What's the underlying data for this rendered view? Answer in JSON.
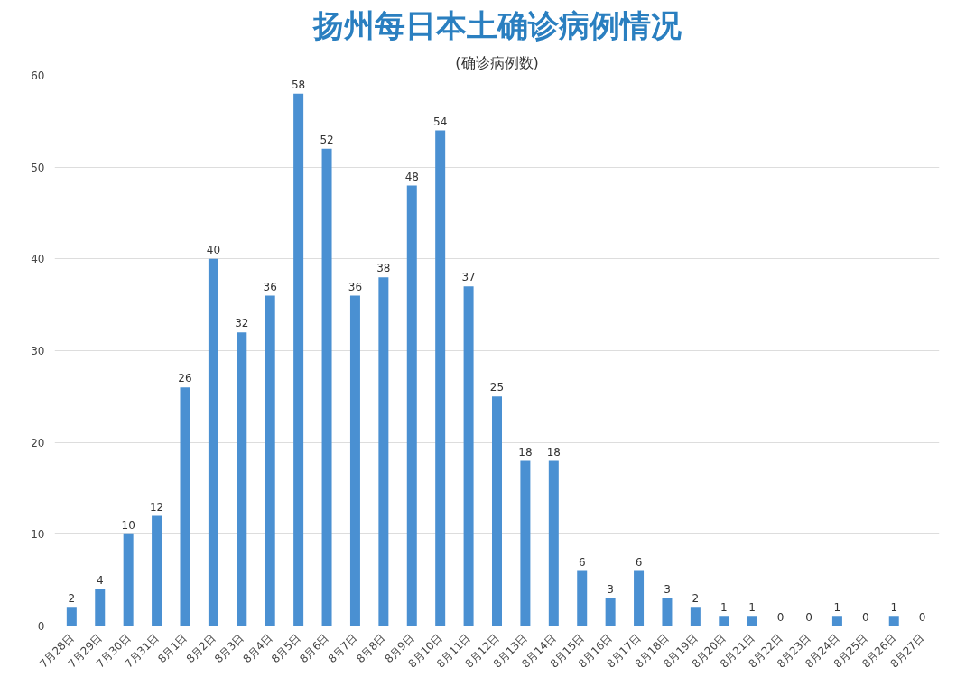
{
  "chart_data": {
    "type": "bar",
    "title": "扬州每日本土确诊病例情况",
    "subtitle": "(确诊病例数)",
    "categories": [
      "7月28日",
      "7月29日",
      "7月30日",
      "7月31日",
      "8月1日",
      "8月2日",
      "8月3日",
      "8月4日",
      "8月5日",
      "8月6日",
      "8月7日",
      "8月8日",
      "8月9日",
      "8月10日",
      "8月11日",
      "8月12日",
      "8月13日",
      "8月14日",
      "8月15日",
      "8月16日",
      "8月17日",
      "8月18日",
      "8月19日",
      "8月20日",
      "8月21日",
      "8月22日",
      "8月23日",
      "8月24日",
      "8月25日",
      "8月26日",
      "8月27日"
    ],
    "values": [
      2,
      4,
      10,
      12,
      26,
      40,
      32,
      36,
      58,
      52,
      36,
      38,
      48,
      54,
      37,
      25,
      18,
      18,
      6,
      3,
      6,
      3,
      2,
      1,
      1,
      0,
      0,
      1,
      0,
      1,
      0
    ],
    "color": "#4a90d2",
    "ylim": [
      0,
      60
    ],
    "yticks": [
      0,
      10,
      20,
      30,
      40,
      50,
      60
    ],
    "grid": "y",
    "data_labels": true
  }
}
